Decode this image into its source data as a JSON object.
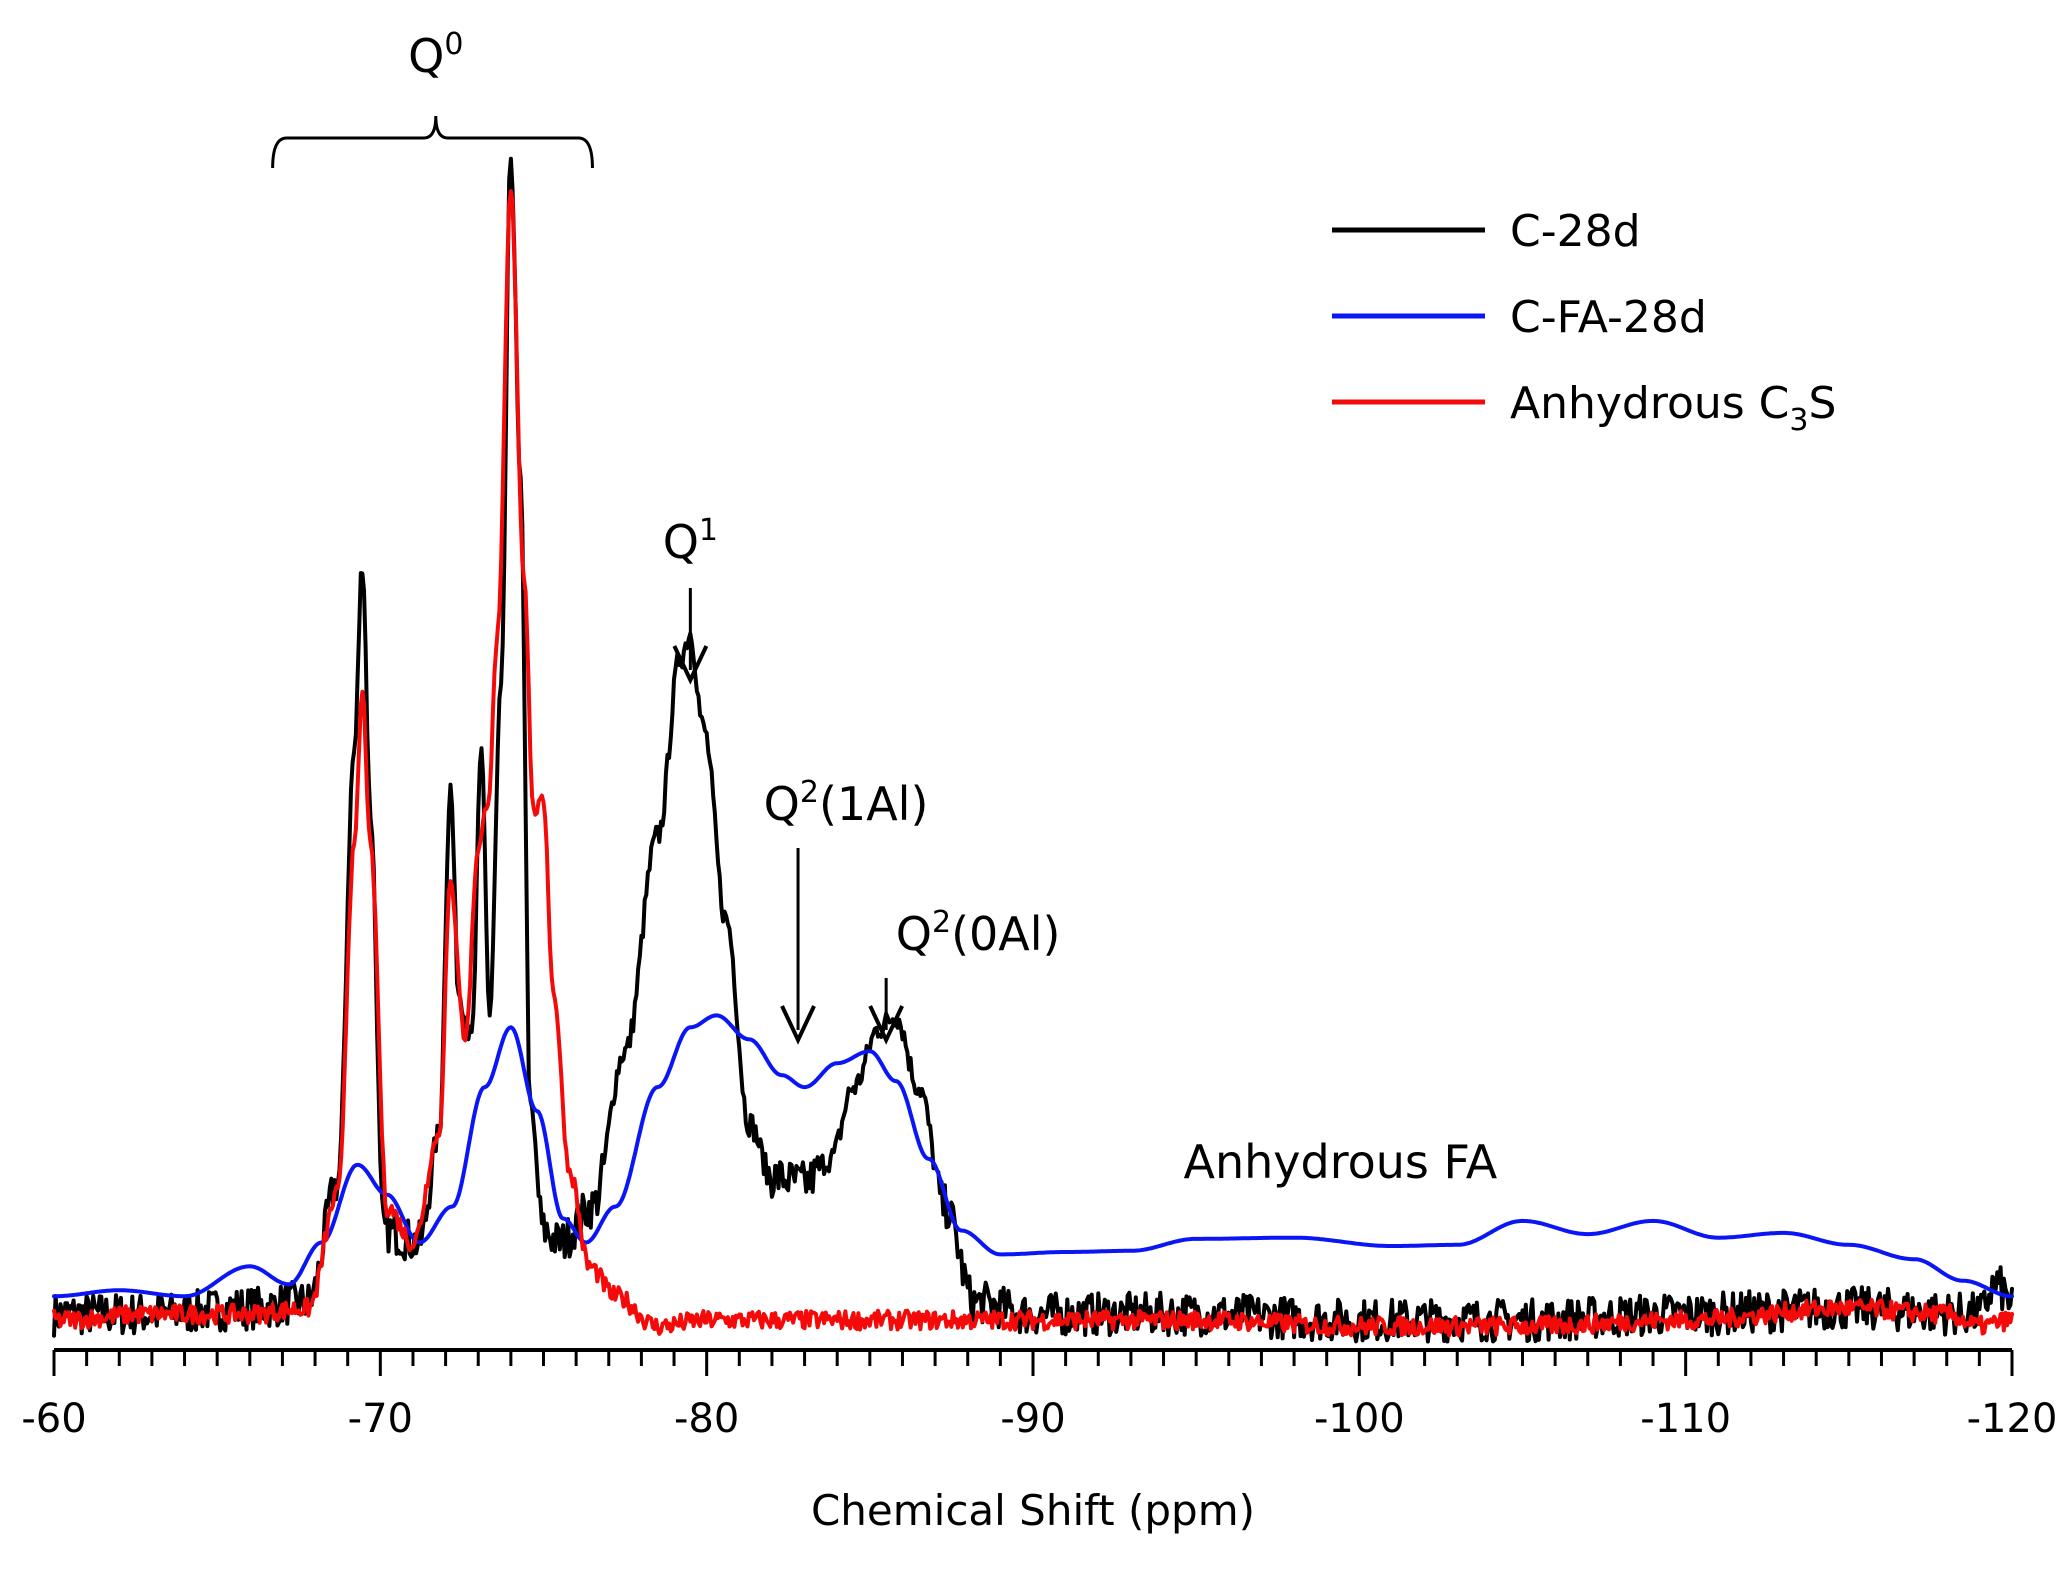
{
  "chart_data": {
    "type": "line",
    "title": "",
    "xlabel": "Chemical Shift (ppm)",
    "ylabel": "",
    "xlim": [
      -60,
      -120
    ],
    "ylim": [
      0,
      1
    ],
    "x_ticks": [
      -60,
      -70,
      -80,
      -90,
      -100,
      -110,
      -120
    ],
    "x_tick_labels": [
      "-60",
      "-70",
      "-80",
      "-90",
      "-100",
      "-110",
      "-120"
    ],
    "legend_position": "top-right",
    "series": [
      {
        "name": "C-28d",
        "color": "#000000",
        "noise": 0.018,
        "points": [
          [
            -60,
            0.03
          ],
          [
            -63,
            0.03
          ],
          [
            -66,
            0.035
          ],
          [
            -67.8,
            0.04
          ],
          [
            -68.7,
            0.14
          ],
          [
            -69.2,
            0.5
          ],
          [
            -69.45,
            0.66
          ],
          [
            -69.7,
            0.45
          ],
          [
            -70.1,
            0.1
          ],
          [
            -71.2,
            0.09
          ],
          [
            -71.8,
            0.18
          ],
          [
            -72.15,
            0.47
          ],
          [
            -72.4,
            0.3
          ],
          [
            -72.8,
            0.26
          ],
          [
            -73.1,
            0.5
          ],
          [
            -73.35,
            0.28
          ],
          [
            -73.7,
            0.55
          ],
          [
            -74.0,
            1.0
          ],
          [
            -74.3,
            0.72
          ],
          [
            -74.6,
            0.2
          ],
          [
            -75.0,
            0.1
          ],
          [
            -75.5,
            0.09
          ],
          [
            -76.5,
            0.12
          ],
          [
            -77.5,
            0.25
          ],
          [
            -78.5,
            0.43
          ],
          [
            -79.2,
            0.58
          ],
          [
            -79.5,
            0.6
          ],
          [
            -79.9,
            0.52
          ],
          [
            -80.6,
            0.36
          ],
          [
            -81.3,
            0.19
          ],
          [
            -82.0,
            0.145
          ],
          [
            -83.0,
            0.14
          ],
          [
            -83.8,
            0.16
          ],
          [
            -84.5,
            0.22
          ],
          [
            -85.3,
            0.27
          ],
          [
            -85.8,
            0.28
          ],
          [
            -86.5,
            0.22
          ],
          [
            -87.3,
            0.12
          ],
          [
            -88.2,
            0.04
          ],
          [
            -90,
            0.03
          ],
          [
            -95,
            0.03
          ],
          [
            -100,
            0.025
          ],
          [
            -105,
            0.025
          ],
          [
            -110,
            0.03
          ],
          [
            -115,
            0.035
          ],
          [
            -119,
            0.03
          ],
          [
            -119.5,
            0.055
          ],
          [
            -120,
            0.04
          ]
        ]
      },
      {
        "name": "C-FA-28d",
        "color": "#0a16f5",
        "noise": 0,
        "points": [
          [
            -60,
            0.045
          ],
          [
            -62,
            0.05
          ],
          [
            -64,
            0.045
          ],
          [
            -66,
            0.07
          ],
          [
            -67.2,
            0.055
          ],
          [
            -68.2,
            0.09
          ],
          [
            -69.3,
            0.155
          ],
          [
            -70.2,
            0.13
          ],
          [
            -71.2,
            0.09
          ],
          [
            -72.2,
            0.12
          ],
          [
            -73.2,
            0.22
          ],
          [
            -74.0,
            0.27
          ],
          [
            -74.8,
            0.2
          ],
          [
            -75.6,
            0.11
          ],
          [
            -76.3,
            0.09
          ],
          [
            -77.2,
            0.12
          ],
          [
            -78.5,
            0.22
          ],
          [
            -79.5,
            0.27
          ],
          [
            -80.3,
            0.28
          ],
          [
            -81.3,
            0.26
          ],
          [
            -82.3,
            0.23
          ],
          [
            -83.0,
            0.22
          ],
          [
            -84.0,
            0.24
          ],
          [
            -85.0,
            0.25
          ],
          [
            -85.8,
            0.225
          ],
          [
            -86.8,
            0.16
          ],
          [
            -87.8,
            0.1
          ],
          [
            -89,
            0.08
          ],
          [
            -91,
            0.082
          ],
          [
            -93,
            0.083
          ],
          [
            -95,
            0.093
          ],
          [
            -98,
            0.094
          ],
          [
            -101,
            0.087
          ],
          [
            -103,
            0.088
          ],
          [
            -105,
            0.108
          ],
          [
            -107,
            0.097
          ],
          [
            -109,
            0.108
          ],
          [
            -111,
            0.094
          ],
          [
            -113,
            0.098
          ],
          [
            -115,
            0.088
          ],
          [
            -117,
            0.076
          ],
          [
            -118.5,
            0.058
          ],
          [
            -120,
            0.045
          ]
        ]
      },
      {
        "name": "Anhydrous C3S",
        "color": "#f50a0a",
        "noise": 0.008,
        "points": [
          [
            -60,
            0.025
          ],
          [
            -63,
            0.03
          ],
          [
            -66,
            0.03
          ],
          [
            -67.8,
            0.035
          ],
          [
            -68.7,
            0.13
          ],
          [
            -69.2,
            0.42
          ],
          [
            -69.45,
            0.55
          ],
          [
            -69.7,
            0.42
          ],
          [
            -70.2,
            0.12
          ],
          [
            -71.0,
            0.09
          ],
          [
            -71.8,
            0.18
          ],
          [
            -72.15,
            0.39
          ],
          [
            -72.6,
            0.26
          ],
          [
            -73.0,
            0.42
          ],
          [
            -73.3,
            0.46
          ],
          [
            -73.6,
            0.6
          ],
          [
            -74.0,
            0.97
          ],
          [
            -74.4,
            0.65
          ],
          [
            -74.7,
            0.45
          ],
          [
            -75.0,
            0.46
          ],
          [
            -75.3,
            0.3
          ],
          [
            -75.8,
            0.15
          ],
          [
            -76.4,
            0.07
          ],
          [
            -77.2,
            0.045
          ],
          [
            -78.5,
            0.02
          ],
          [
            -80,
            0.025
          ],
          [
            -85,
            0.025
          ],
          [
            -90,
            0.025
          ],
          [
            -95,
            0.025
          ],
          [
            -100,
            0.02
          ],
          [
            -105,
            0.02
          ],
          [
            -110,
            0.025
          ],
          [
            -115,
            0.035
          ],
          [
            -118,
            0.03
          ],
          [
            -119,
            0.02
          ],
          [
            -120,
            0.025
          ]
        ]
      }
    ],
    "annotations": [
      {
        "base": "Q",
        "sup": "0",
        "suffix": "",
        "x": -71.7
      },
      {
        "base": "Q",
        "sup": "1",
        "suffix": "",
        "x": -79.5
      },
      {
        "base": "Q",
        "sup": "2",
        "suffix": "(1Al)",
        "x": -82.8
      },
      {
        "base": "Q",
        "sup": "2",
        "suffix": "(0Al)",
        "x": -85.5
      },
      {
        "base": "Anhydrous FA",
        "sup": "",
        "suffix": "",
        "x": -98.5
      }
    ],
    "legend": [
      {
        "label": "C-28d",
        "sub": "",
        "suffix": ""
      },
      {
        "label": "C-FA-28d",
        "sub": "",
        "suffix": ""
      },
      {
        "label": "Anhydrous C",
        "sub": "3",
        "suffix": "S"
      }
    ]
  }
}
